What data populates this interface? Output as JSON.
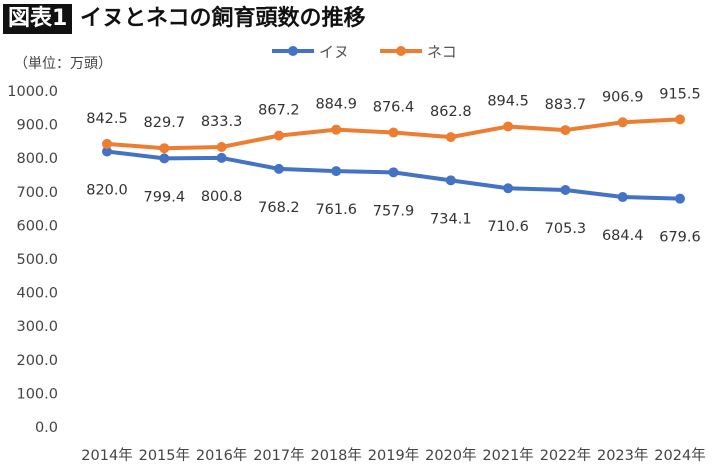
{
  "header": {
    "figure_label": "図表1",
    "title": "イヌとネコの飼育頭数の推移",
    "unit": "（単位：万頭）"
  },
  "chart_data": {
    "type": "line",
    "title": "イヌとネコの飼育頭数の推移",
    "ylabel": "（単位：万頭）",
    "ylim": [
      0,
      1000
    ],
    "yticks": [
      "0.0",
      "100.0",
      "200.0",
      "300.0",
      "400.0",
      "500.0",
      "600.0",
      "700.0",
      "800.0",
      "900.0",
      "1000.0"
    ],
    "categories": [
      "2014年",
      "2015年",
      "2016年",
      "2017年",
      "2018年",
      "2019年",
      "2020年",
      "2021年",
      "2022年",
      "2023年",
      "2024年"
    ],
    "grid": false,
    "legend": "top",
    "series": [
      {
        "name": "イヌ",
        "color": "#4472C4",
        "values": [
          820.0,
          799.4,
          800.8,
          768.2,
          761.6,
          757.9,
          734.1,
          710.6,
          705.3,
          684.4,
          679.6
        ],
        "labels": [
          "820.0",
          "799.4",
          "800.8",
          "768.2",
          "761.6",
          "757.9",
          "734.1",
          "710.6",
          "705.3",
          "684.4",
          "679.6"
        ]
      },
      {
        "name": "ネコ",
        "color": "#ED7D31",
        "values": [
          842.5,
          829.7,
          833.3,
          867.2,
          884.9,
          876.4,
          862.8,
          894.5,
          883.7,
          906.9,
          915.5
        ],
        "labels": [
          "842.5",
          "829.7",
          "833.3",
          "867.2",
          "884.9",
          "876.4",
          "862.8",
          "894.5",
          "883.7",
          "906.9",
          "915.5"
        ]
      }
    ]
  }
}
